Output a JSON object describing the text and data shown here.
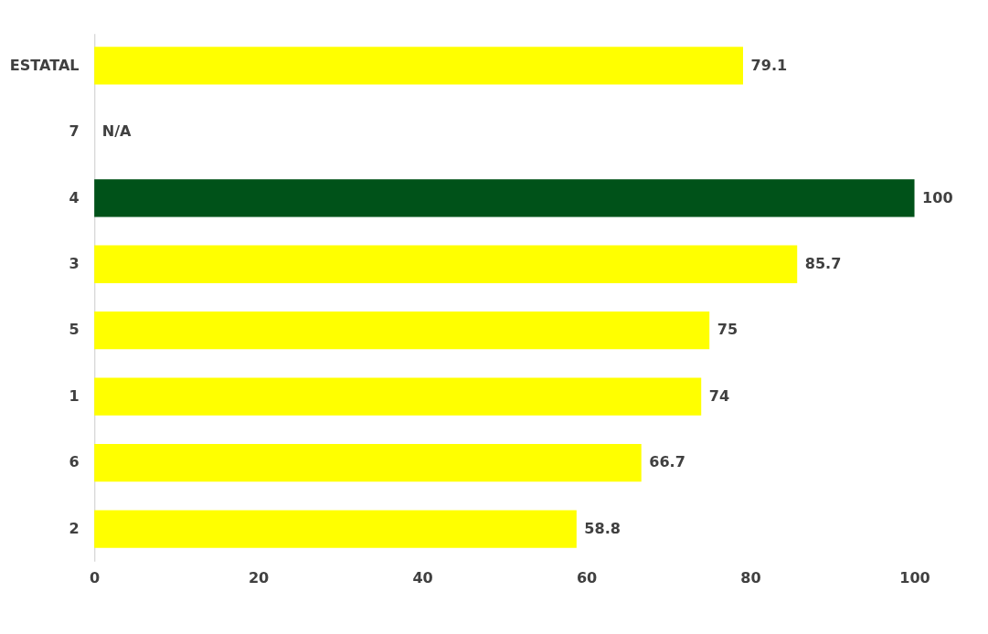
{
  "chart_data": {
    "type": "bar",
    "orientation": "horizontal",
    "categories": [
      "ESTATAL",
      "7",
      "4",
      "3",
      "5",
      "1",
      "6",
      "2"
    ],
    "values": [
      79.1,
      null,
      100,
      85.7,
      75,
      74,
      66.7,
      58.8
    ],
    "colors": [
      "#ffff00",
      "#ffff00",
      "#005219",
      "#ffff00",
      "#ffff00",
      "#ffff00",
      "#ffff00",
      "#ffff00"
    ],
    "value_labels": [
      "79.1",
      "N/A",
      "100",
      "85.7",
      "75",
      "74",
      "66.7",
      "58.8"
    ],
    "xlim": [
      0,
      100
    ],
    "xticks": [
      0,
      20,
      40,
      60,
      80,
      100
    ],
    "grid": false
  }
}
